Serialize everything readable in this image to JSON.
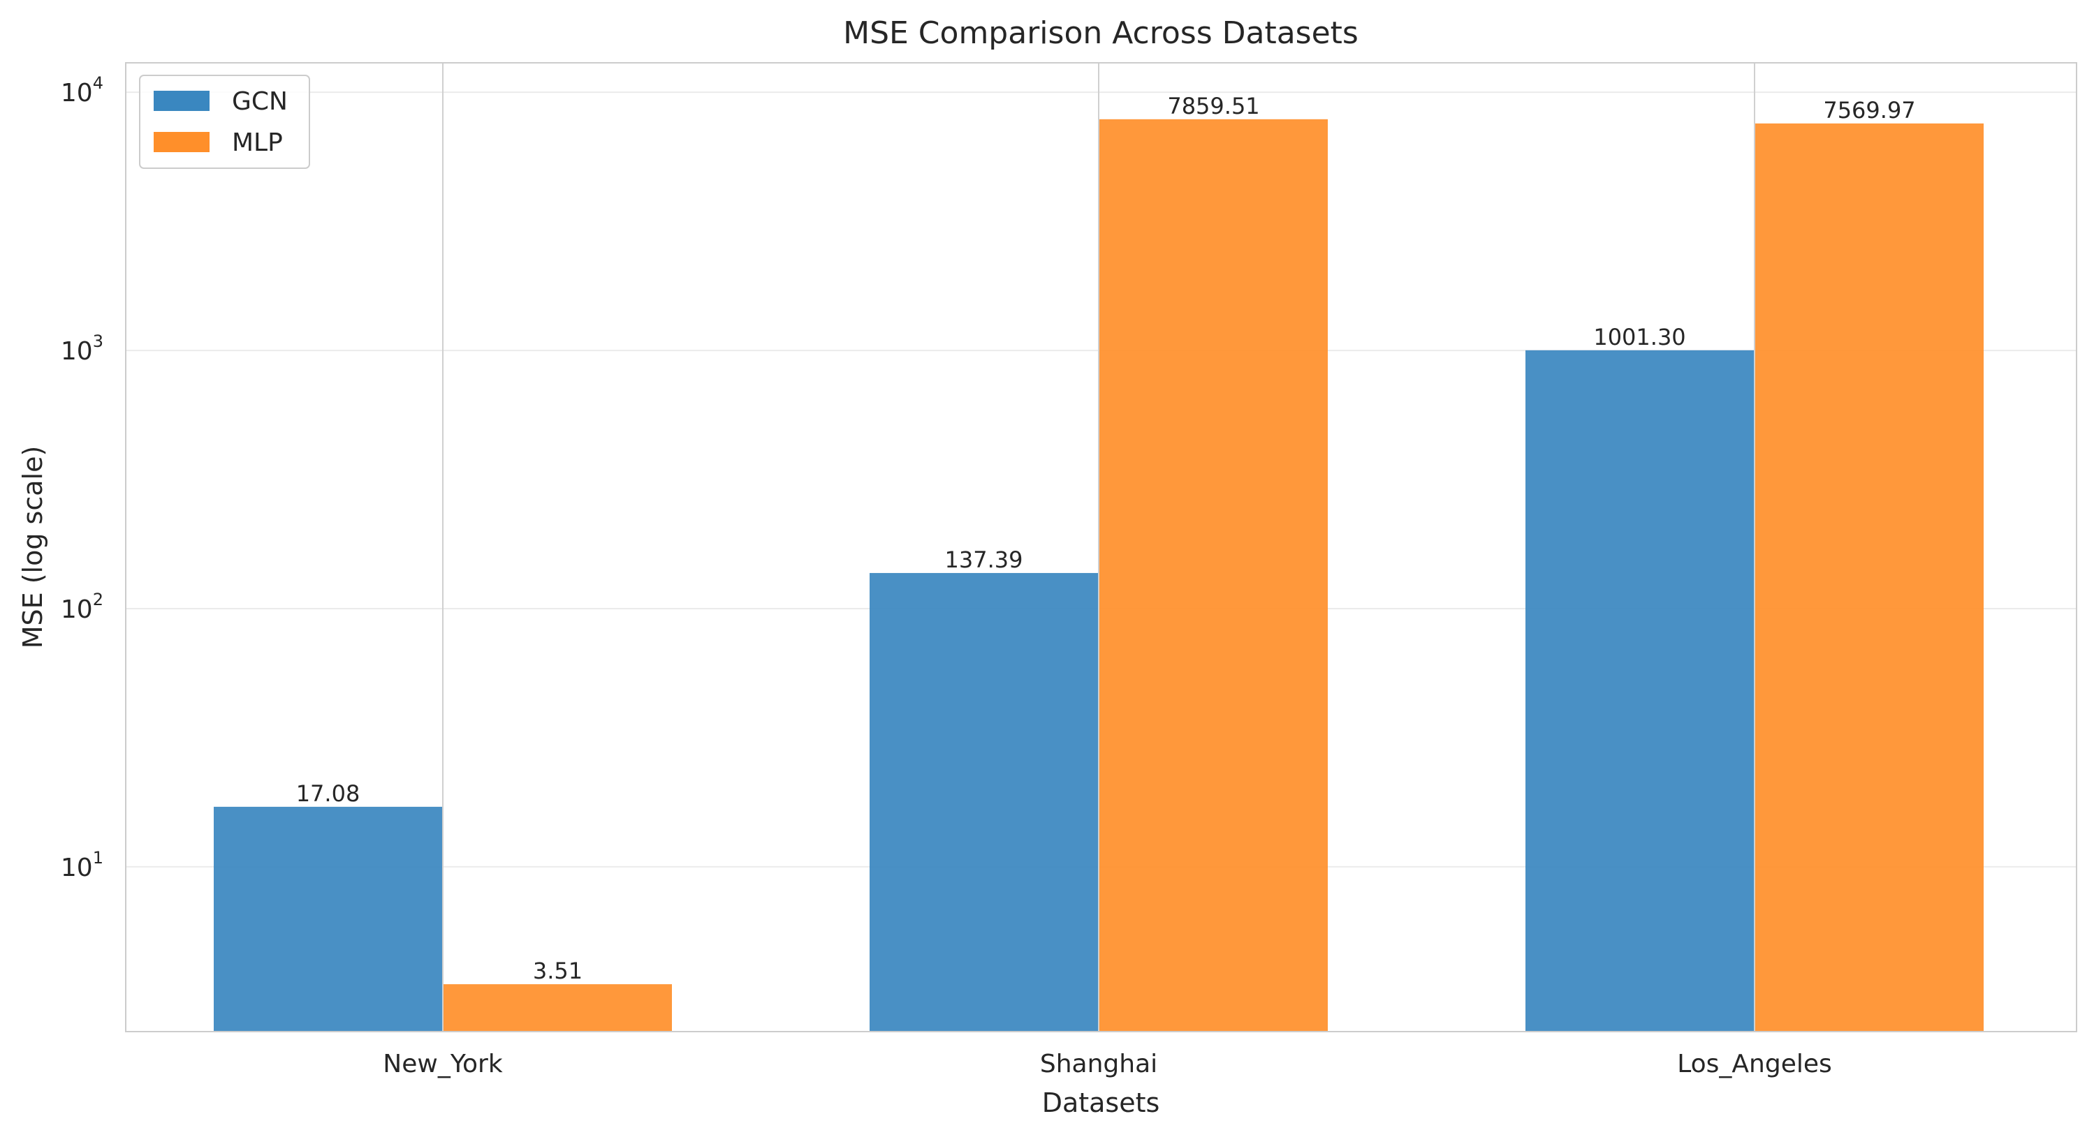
{
  "chart_data": {
    "type": "bar",
    "title": "MSE Comparison Across Datasets",
    "xlabel": "Datasets",
    "ylabel": "MSE (log scale)",
    "yscale": "log",
    "ylim": [
      2.3,
      13000
    ],
    "y_ticks": [
      {
        "value": 10,
        "base": "10",
        "exp": "1"
      },
      {
        "value": 100,
        "base": "10",
        "exp": "2"
      },
      {
        "value": 1000,
        "base": "10",
        "exp": "3"
      },
      {
        "value": 10000,
        "base": "10",
        "exp": "4"
      }
    ],
    "categories": [
      "New_York",
      "Shanghai",
      "Los_Angeles"
    ],
    "series": [
      {
        "name": "GCN",
        "color": "#3a87c0",
        "values": [
          17.08,
          137.39,
          1001.3
        ],
        "labels": [
          "17.08",
          "137.39",
          "1001.30"
        ]
      },
      {
        "name": "MLP",
        "color": "#ff8f2a",
        "values": [
          3.51,
          7859.51,
          7569.97
        ],
        "labels": [
          "3.51",
          "7859.51",
          "7569.97"
        ]
      }
    ],
    "grid": true,
    "legend_position": "top-left"
  }
}
